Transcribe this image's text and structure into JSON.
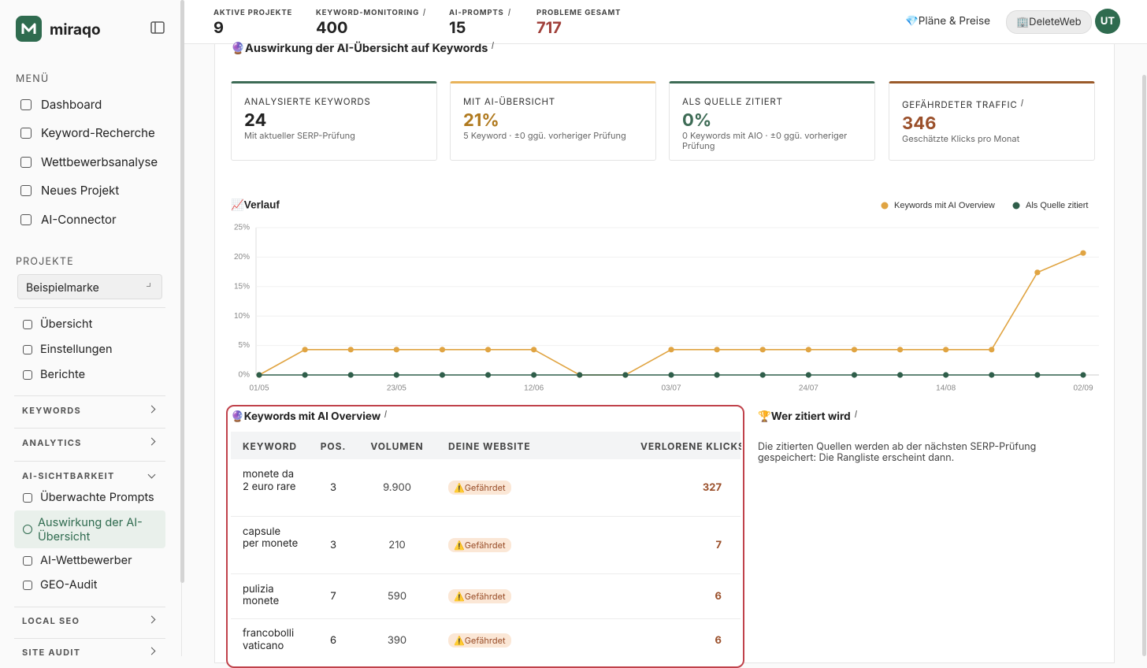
{
  "sidebar": {
    "brand": "miraqo",
    "menu_label": "MENÜ",
    "menu": [
      "Dashboard",
      "Keyword-Recherche",
      "Wettbewerbsanalyse",
      "Neues Projekt",
      "AI-Connector"
    ],
    "projects_label": "PROJEKTE",
    "project_select": "Beispielmarke",
    "project_nav": [
      "Übersicht",
      "Einstellungen",
      "Berichte"
    ],
    "sections": [
      {
        "label": "KEYWORDS"
      },
      {
        "label": "ANALYTICS"
      },
      {
        "label": "AI-SICHTBARKEIT",
        "items": [
          "Überwachte Prompts",
          "Auswirkung der AI-Übersicht",
          "AI-Wettbewerber",
          "GEO-Audit"
        ],
        "active": 1
      },
      {
        "label": "LOCAL SEO"
      },
      {
        "label": "SITE AUDIT"
      }
    ]
  },
  "topbar": {
    "stats": [
      {
        "label": "AKTIVE PROJEKTE",
        "value": 9
      },
      {
        "label": "KEYWORD-MONITORING",
        "value": 400
      },
      {
        "label": "AI-PROMPTS",
        "value": 15
      },
      {
        "label": "PROBLEME GESAMT",
        "value": 717
      }
    ],
    "plans": "💎Pläne & Preise",
    "workspace": "🏢DeleteWeb",
    "avatar": "UT"
  },
  "section_title": "🔮Auswirkung der AI-Übersicht auf Keywords",
  "cards": [
    {
      "label": "ANALYSIERTE KEYWORDS",
      "value": "24",
      "note": "Mit aktueller SERP-Prüfung"
    },
    {
      "label": "MIT AI-ÜBERSICHT",
      "value": "21%",
      "note": "5 Keyword · ±0  ggü. vorheriger Prüfung"
    },
    {
      "label": "ALS QUELLE ZITIERT",
      "value": "0%",
      "note": "0 Keywords mit AIO · ±0  ggü. vorheriger Prüfung"
    },
    {
      "label": "GEFÄHRDETER TRAFFIC",
      "value": "346",
      "note": "Geschätzte Klicks pro Monat"
    }
  ],
  "chart_data": {
    "type": "line",
    "title": "📈Verlauf",
    "categories": [
      "01/05",
      null,
      null,
      "23/05",
      null,
      null,
      "12/06",
      null,
      null,
      "03/07",
      null,
      null,
      "24/07",
      null,
      null,
      "14/08",
      null,
      null,
      "02/09"
    ],
    "series": [
      {
        "name": "Keywords mit AI Overview",
        "color": "#e0a442",
        "values": [
          0,
          4.3,
          4.3,
          4.3,
          4.3,
          4.3,
          4.3,
          0,
          0,
          4.3,
          4.3,
          4.3,
          4.3,
          4.3,
          4.3,
          4.3,
          4.3,
          17.4,
          20.7
        ]
      },
      {
        "name": "Als Quelle zitiert",
        "color": "#2f5e4a",
        "values": [
          0,
          0,
          0,
          0,
          0,
          0,
          0,
          0,
          0,
          0,
          0,
          0,
          0,
          0,
          0,
          0,
          0,
          0,
          0
        ]
      }
    ],
    "ylim": [
      0,
      25
    ],
    "yticks": [
      {
        "value": 0,
        "label": "0%"
      },
      {
        "value": 5,
        "label": "5%"
      },
      {
        "value": 10,
        "label": "10%"
      },
      {
        "value": 15,
        "label": "15%"
      },
      {
        "value": 20,
        "label": "20%"
      },
      {
        "value": 25,
        "label": "25%"
      }
    ],
    "grid": true,
    "legend": "top-right"
  },
  "table": {
    "title": "🔮Keywords mit AI Overview",
    "columns": [
      "KEYWORD",
      "POS.",
      "VOLUMEN",
      "DEINE WEBSITE",
      "VERLORENE KLICKS"
    ],
    "rows": [
      [
        "monete da 2 euro rare",
        3,
        "9.900",
        "⚠️Gefährdet",
        327
      ],
      [
        "capsule per monete",
        3,
        "210",
        "⚠️Gefährdet",
        7
      ],
      [
        "pulizia monete",
        7,
        "590",
        "⚠️Gefährdet",
        6
      ],
      [
        "francobolli vaticano",
        6,
        "390",
        "⚠️Gefährdet",
        6
      ]
    ]
  },
  "citations": {
    "title": "🏆Wer zitiert wird",
    "text": "Die zitierten Quellen werden ab der nächsten SERP-Prüfung gespeichert: Die Rangliste erscheint dann."
  }
}
